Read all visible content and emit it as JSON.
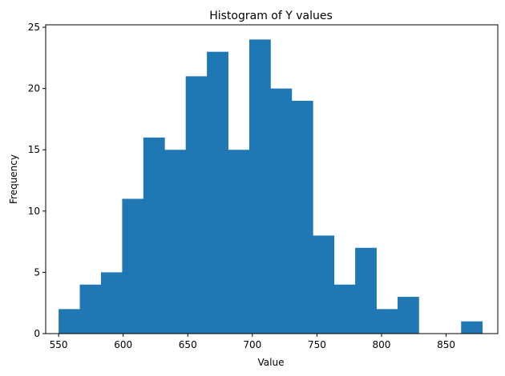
{
  "chart_data": {
    "type": "bar",
    "title": "Histogram of Y values",
    "xlabel": "Value",
    "ylabel": "Frequency",
    "bar_color": "#1f77b4",
    "xlim": [
      540,
      890
    ],
    "ylim": [
      0,
      25.2
    ],
    "x_ticks": [
      550,
      600,
      650,
      700,
      750,
      800,
      850
    ],
    "y_ticks": [
      0,
      5,
      10,
      15,
      20,
      25
    ],
    "grid": false,
    "legend": "none",
    "bins": [
      {
        "x0": 550.0,
        "x1": 566.4,
        "count": 2
      },
      {
        "x0": 566.4,
        "x1": 582.8,
        "count": 4
      },
      {
        "x0": 582.8,
        "x1": 599.2,
        "count": 5
      },
      {
        "x0": 599.2,
        "x1": 615.6,
        "count": 11
      },
      {
        "x0": 615.6,
        "x1": 632.0,
        "count": 16
      },
      {
        "x0": 632.0,
        "x1": 648.4,
        "count": 15
      },
      {
        "x0": 648.4,
        "x1": 664.8,
        "count": 21
      },
      {
        "x0": 664.8,
        "x1": 681.2,
        "count": 23
      },
      {
        "x0": 681.2,
        "x1": 697.6,
        "count": 15
      },
      {
        "x0": 697.6,
        "x1": 714.0,
        "count": 24
      },
      {
        "x0": 714.0,
        "x1": 730.4,
        "count": 20
      },
      {
        "x0": 730.4,
        "x1": 746.8,
        "count": 19
      },
      {
        "x0": 746.8,
        "x1": 763.2,
        "count": 8
      },
      {
        "x0": 763.2,
        "x1": 779.6,
        "count": 4
      },
      {
        "x0": 779.6,
        "x1": 796.0,
        "count": 7
      },
      {
        "x0": 796.0,
        "x1": 812.4,
        "count": 2
      },
      {
        "x0": 812.4,
        "x1": 828.8,
        "count": 3
      },
      {
        "x0": 828.8,
        "x1": 845.2,
        "count": 0
      },
      {
        "x0": 845.2,
        "x1": 861.6,
        "count": 0
      },
      {
        "x0": 861.6,
        "x1": 878.0,
        "count": 1
      }
    ]
  }
}
